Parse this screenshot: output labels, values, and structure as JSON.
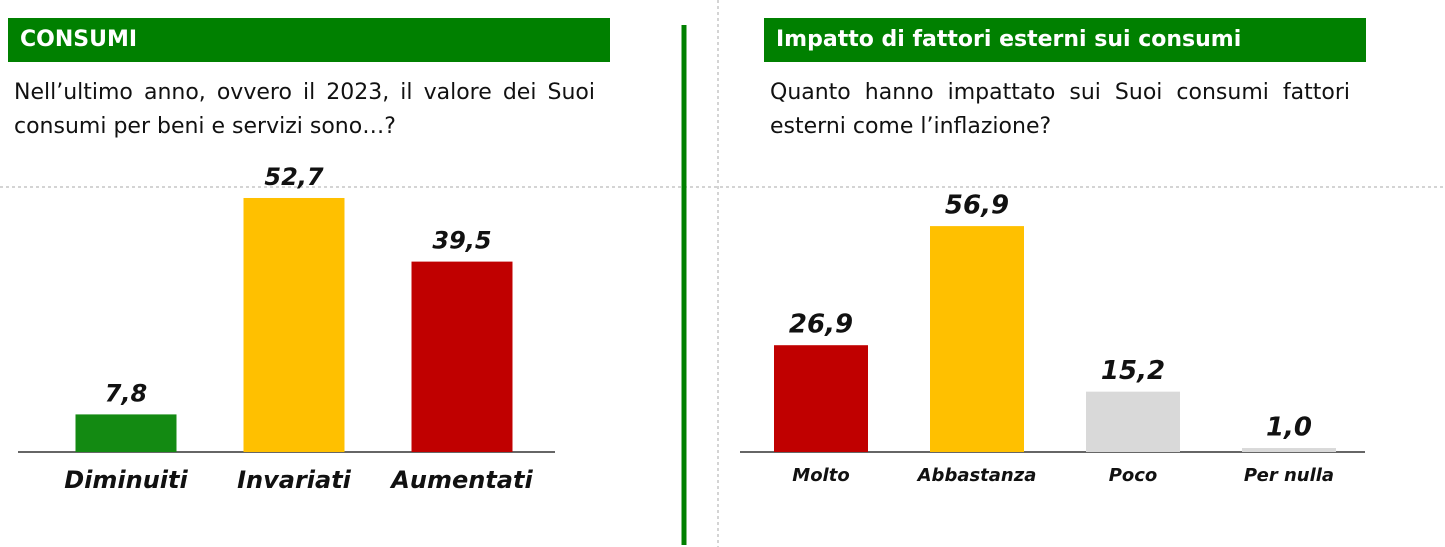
{
  "chart_data": [
    {
      "type": "bar",
      "title": "CONSUMI",
      "subtitle": "Nell’ultimo anno, ovvero il 2023, il valore dei Suoi consumi per beni e servizi sono…?",
      "categories": [
        "Diminuiti",
        "Invariati",
        "Aumentati"
      ],
      "values": [
        7.8,
        52.7,
        39.5
      ],
      "value_labels": [
        "7,8",
        "52,7",
        "39,5"
      ],
      "colors": [
        "#138a12",
        "#ffc000",
        "#c00000"
      ]
    },
    {
      "type": "bar",
      "title": "Impatto di fattori esterni sui consumi",
      "subtitle": "Quanto hanno impattato sui Suoi consumi fattori esterni come l’inflazione?",
      "categories": [
        "Molto",
        "Abbastanza",
        "Poco",
        "Per nulla"
      ],
      "values": [
        26.9,
        56.9,
        15.2,
        1.0
      ],
      "value_labels": [
        "26,9",
        "56,9",
        "15,2",
        "1,0"
      ],
      "colors": [
        "#c00000",
        "#ffc000",
        "#d9d9d9",
        "#d9d9d9"
      ]
    }
  ]
}
